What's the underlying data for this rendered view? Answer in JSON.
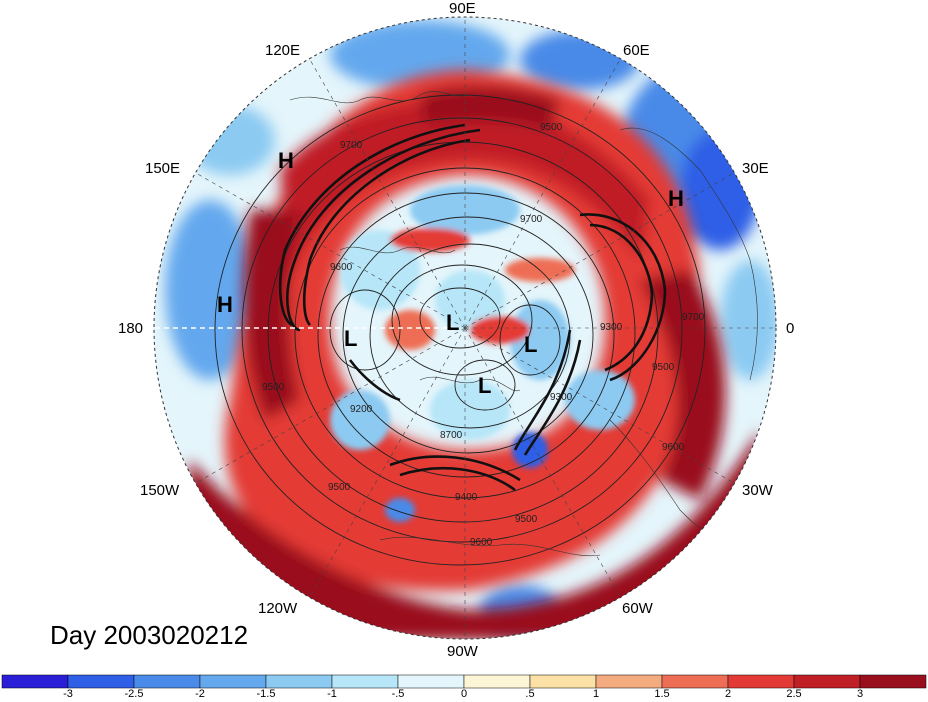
{
  "title": "Day 2003020212",
  "longitude_labels": {
    "top": "90E",
    "upper_left": "120E",
    "upper_right": "60E",
    "left_upper": "150E",
    "right_upper": "30E",
    "left": "180",
    "right": "0",
    "left_lower": "150W",
    "right_lower": "30W",
    "lower_left": "120W",
    "lower_right": "60W",
    "bottom": "90W"
  },
  "pressure_centers": [
    {
      "label": "H",
      "id": "h-150e"
    },
    {
      "label": "H",
      "id": "h-180"
    },
    {
      "label": "H",
      "id": "h-30e"
    },
    {
      "label": "L",
      "id": "l-center"
    },
    {
      "label": "L",
      "id": "l-west"
    },
    {
      "label": "L",
      "id": "l-east"
    },
    {
      "label": "L",
      "id": "l-south"
    }
  ],
  "contour_labels": [
    "9700",
    "9500",
    "9600",
    "9700",
    "9300",
    "9200",
    "8700",
    "9500",
    "9400",
    "9500",
    "9600",
    "9300",
    "9500",
    "9600",
    "9700",
    "9500"
  ],
  "colorbar": {
    "ticks": [
      "-3",
      "-2.5",
      "-2",
      "-1.5",
      "-1",
      "-.5",
      "0",
      ".5",
      "1",
      "1.5",
      "2",
      "2.5",
      "3"
    ],
    "colors": [
      "#2a1fd6",
      "#2f5fe6",
      "#4a8ae8",
      "#64a8ee",
      "#8ccaf2",
      "#b6e6f8",
      "#e4f5fb",
      "#fdf6d6",
      "#fbe1a6",
      "#f5ab80",
      "#ee6e55",
      "#e43a35",
      "#c01f25",
      "#9a0f1e"
    ]
  }
}
